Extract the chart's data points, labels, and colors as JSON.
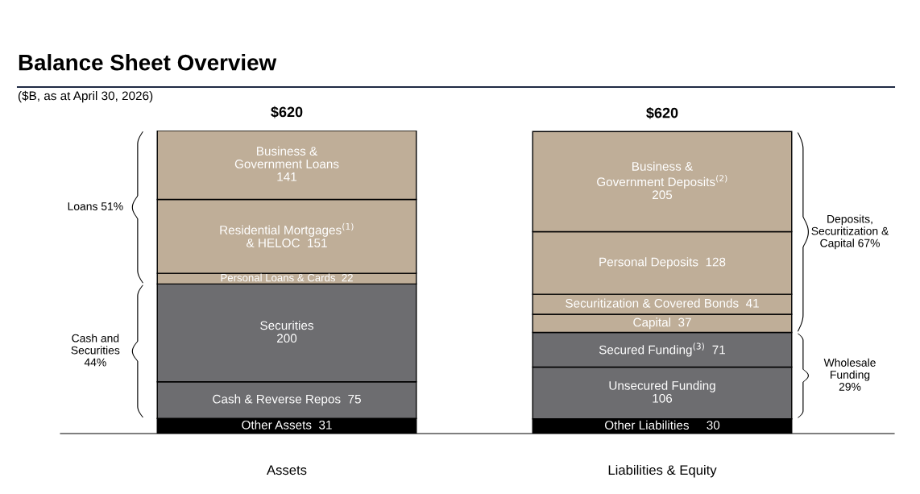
{
  "chart_data": {
    "type": "bar",
    "stacked": true,
    "title": "Balance Sheet Overview",
    "subtitle": "($B, as at April 30, 2026)",
    "categories": [
      "Assets",
      "Liabilities & Equity"
    ],
    "series": [
      {
        "color": "#000000",
        "values": [
          31,
          null
        ],
        "value_labels": [
          "Other Assets  31",
          null
        ]
      },
      {
        "color": "#6d6d70",
        "values": [
          75,
          null
        ],
        "value_labels": [
          "Cash & Reverse Repos  75",
          null
        ]
      },
      {
        "color": "#6d6d70",
        "values": [
          200,
          null
        ],
        "value_labels": [
          "Securities\n200",
          null
        ]
      },
      {
        "color": "#bfae98",
        "values": [
          22,
          null
        ],
        "value_labels": [
          "Personal Loans & Cards  22",
          null
        ]
      },
      {
        "color": "#bfae98",
        "values": [
          151,
          null
        ],
        "value_labels": [
          "Residential Mortgages$^{(1)}$\n& HELOC  151",
          null
        ]
      },
      {
        "color": "#bfae98",
        "values": [
          141,
          null
        ],
        "value_labels": [
          "Business &\nGovernment Loans\n141",
          null
        ]
      },
      {
        "color": "#000000",
        "values": [
          null,
          30
        ],
        "value_labels": [
          null,
          "Other Liabilities     30"
        ]
      },
      {
        "color": "#6d6d70",
        "values": [
          null,
          106
        ],
        "value_labels": [
          null,
          "Unsecured Funding\n106"
        ]
      },
      {
        "color": "#6d6d70",
        "values": [
          null,
          71
        ],
        "value_labels": [
          null,
          "Secured Funding$^{(3)}$  71"
        ]
      },
      {
        "color": "#bfae98",
        "values": [
          null,
          37
        ],
        "value_labels": [
          null,
          "Capital  37"
        ]
      },
      {
        "color": "#bfae98",
        "values": [
          null,
          41
        ],
        "value_labels": [
          null,
          "Securitization & Covered Bonds  41"
        ]
      },
      {
        "color": "#bfae98",
        "values": [
          null,
          128
        ],
        "value_labels": [
          null,
          "Personal Deposits  128"
        ]
      },
      {
        "color": "#bfae98",
        "values": [
          null,
          205
        ],
        "value_labels": [
          null,
          "Business &\nGovernment Deposits$^{(2)}$\n205"
        ]
      }
    ],
    "totals": [
      "$620",
      "$620"
    ],
    "annotations": [
      "Loans 51%",
      "Cash and\nSecurities\n44%",
      "Deposits,\nSecuritization &\nCapital 67%",
      "Wholesale\nFunding\n29%"
    ],
    "legend": false,
    "grid": false
  }
}
